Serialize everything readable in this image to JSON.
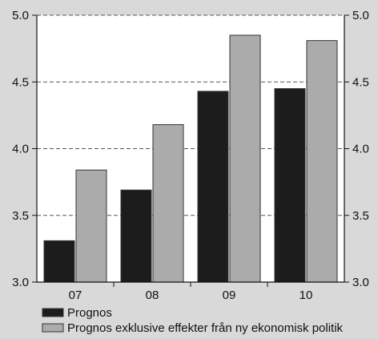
{
  "chart_data": {
    "type": "bar",
    "categories": [
      "07",
      "08",
      "09",
      "10"
    ],
    "series": [
      {
        "name": "Prognos",
        "values": [
          3.31,
          3.69,
          4.43,
          4.45
        ],
        "color": "#1c1c1c"
      },
      {
        "name": "Prognos exklusive effekter från ny ekonomisk politik",
        "values": [
          3.84,
          4.18,
          4.85,
          4.81
        ],
        "color": "#ababab"
      }
    ],
    "ylim": [
      3.0,
      5.0
    ],
    "yticks": [
      "3.0",
      "3.5",
      "4.0",
      "4.5",
      "5.0"
    ],
    "y_axis_sides": [
      "left",
      "right"
    ],
    "grid": "dashed horizontal",
    "legend_position": "bottom-left",
    "background": "#d9d9d9",
    "plot_background": "#ffffff"
  }
}
